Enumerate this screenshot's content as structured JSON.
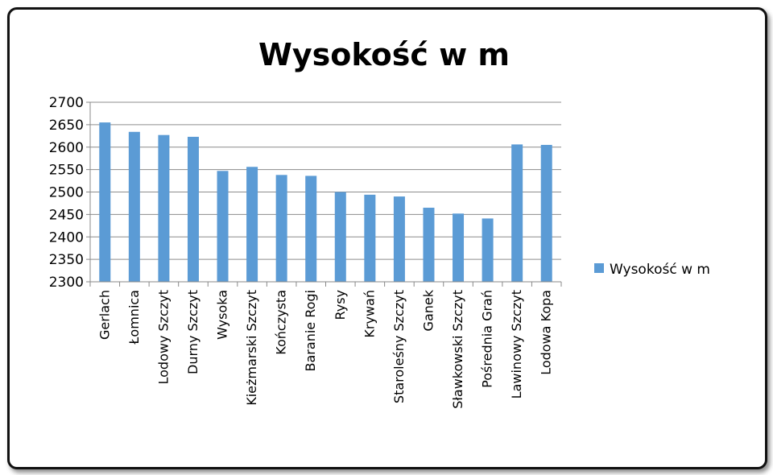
{
  "chart_data": {
    "type": "bar",
    "title": "Wysokość w m",
    "xlabel": "",
    "ylabel": "",
    "categories": [
      "Gerlach",
      "Łomnica",
      "Lodowy Szczyt",
      "Durny Szczyt",
      "Wysoka",
      "Kieżmarski Szczyt",
      "Kończysta",
      "Baranie Rogi",
      "Rysy",
      "Krywań",
      "Staroleśny Szczyt",
      "Ganek",
      "Sławkowski Szczyt",
      "Pośrednia Grań",
      "Lawinowy Szczyt",
      "Lodowa Kopa"
    ],
    "series": [
      {
        "name": "Wysokość w m",
        "values": [
          2655,
          2634,
          2627,
          2623,
          2547,
          2556,
          2538,
          2536,
          2500,
          2494,
          2490,
          2465,
          2452,
          2441,
          2606,
          2605
        ],
        "color": "#5b9bd5"
      }
    ],
    "yticks": [
      2300,
      2350,
      2400,
      2450,
      2500,
      2550,
      2600,
      2650,
      2700
    ],
    "ylim": [
      2300,
      2700
    ],
    "grid": true,
    "legend": "right"
  }
}
